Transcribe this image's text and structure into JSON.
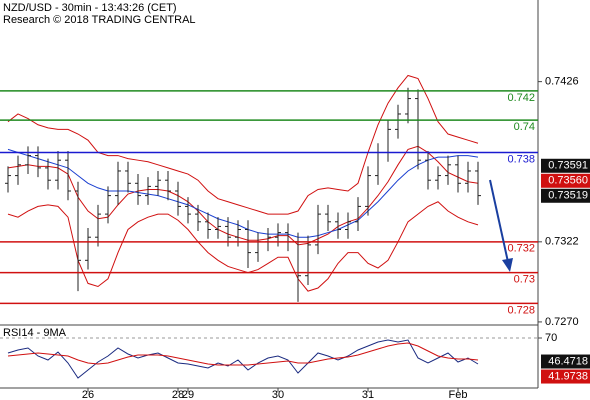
{
  "chart_data": [
    {
      "type": "ohlc",
      "title": "NZD/USD - 30min - 13:43:26 (CET)",
      "subtitle": "Research © 2018 TRADING CENTRAL",
      "categories": [
        null,
        null,
        null,
        null,
        null,
        null,
        null,
        null,
        "26",
        null,
        null,
        null,
        null,
        null,
        null,
        null,
        null,
        "28",
        "29",
        null,
        null,
        null,
        null,
        null,
        null,
        null,
        null,
        "30",
        null,
        null,
        null,
        null,
        null,
        null,
        null,
        null,
        "31",
        null,
        null,
        null,
        null,
        null,
        null,
        null,
        null,
        "Feb",
        null,
        null
      ],
      "open": [
        0.736,
        0.7365,
        0.7372,
        0.7378,
        0.737,
        0.7362,
        0.7375,
        0.7355,
        0.731,
        0.7325,
        0.734,
        0.7352,
        0.7368,
        0.736,
        0.7352,
        0.7358,
        0.7362,
        0.7355,
        0.7345,
        0.734,
        0.7335,
        0.733,
        0.7332,
        0.7325,
        0.733,
        0.7315,
        0.7322,
        0.7325,
        0.7328,
        0.7322,
        0.73,
        0.732,
        0.734,
        0.7335,
        0.733,
        0.7335,
        0.7345,
        0.7365,
        0.738,
        0.7395,
        0.7405,
        0.7415,
        0.7375,
        0.7362,
        0.7365,
        0.7372,
        0.736,
        0.7368
      ],
      "high": [
        0.7371,
        0.7378,
        0.7384,
        0.7384,
        0.7376,
        0.7381,
        0.7381,
        0.7361,
        0.7331,
        0.7346,
        0.7358,
        0.7374,
        0.7374,
        0.7366,
        0.7364,
        0.7368,
        0.7368,
        0.7361,
        0.7351,
        0.7346,
        0.7341,
        0.7338,
        0.7338,
        0.7336,
        0.7336,
        0.7328,
        0.7331,
        0.7334,
        0.7334,
        0.7328,
        0.7326,
        0.7346,
        0.7346,
        0.7341,
        0.7341,
        0.7351,
        0.7371,
        0.7386,
        0.7401,
        0.7411,
        0.7422,
        0.7421,
        0.7381,
        0.7371,
        0.7378,
        0.7378,
        0.7374,
        0.7374
      ],
      "low": [
        0.7354,
        0.7359,
        0.7366,
        0.7364,
        0.7356,
        0.7356,
        0.7349,
        0.729,
        0.7304,
        0.7319,
        0.7334,
        0.7346,
        0.7354,
        0.7346,
        0.7346,
        0.7352,
        0.7349,
        0.7339,
        0.7334,
        0.7329,
        0.7324,
        0.7324,
        0.7319,
        0.7319,
        0.7305,
        0.7309,
        0.7316,
        0.7319,
        0.7316,
        0.7283,
        0.7294,
        0.7314,
        0.7329,
        0.7324,
        0.7324,
        0.7329,
        0.7339,
        0.7359,
        0.7374,
        0.7389,
        0.7399,
        0.7369,
        0.7356,
        0.7356,
        0.7359,
        0.7354,
        0.7354,
        0.7346
      ],
      "close": [
        0.7365,
        0.7372,
        0.7378,
        0.737,
        0.7362,
        0.7375,
        0.7355,
        0.731,
        0.7325,
        0.734,
        0.7352,
        0.7368,
        0.736,
        0.7352,
        0.7358,
        0.7362,
        0.7355,
        0.7345,
        0.734,
        0.7335,
        0.733,
        0.7332,
        0.7325,
        0.733,
        0.7315,
        0.7322,
        0.7325,
        0.7328,
        0.7322,
        0.73,
        0.732,
        0.734,
        0.7335,
        0.733,
        0.7335,
        0.7345,
        0.7365,
        0.738,
        0.7395,
        0.7405,
        0.7415,
        0.7375,
        0.7362,
        0.7365,
        0.7372,
        0.736,
        0.7368,
        0.7352
      ],
      "bar_color": "#222222",
      "series": [
        {
          "color": "#d01010",
          "values": [
            0.74,
            0.7405,
            0.7402,
            0.7398,
            0.7396,
            0.7395,
            0.7395,
            0.7392,
            0.7388,
            0.738,
            0.7378,
            0.7378,
            0.7376,
            0.7375,
            0.7374,
            0.7372,
            0.737,
            0.7368,
            0.7366,
            0.7362,
            0.7355,
            0.735,
            0.7348,
            0.7346,
            0.7344,
            0.7342,
            0.734,
            0.734,
            0.734,
            0.7342,
            0.7352,
            0.7356,
            0.7357,
            0.7356,
            0.7355,
            0.736,
            0.738,
            0.7398,
            0.7412,
            0.7422,
            0.743,
            0.7428,
            0.7415,
            0.74,
            0.7392,
            0.739,
            0.7388,
            0.7386
          ]
        },
        {
          "color": "#d01010",
          "values": [
            0.737,
            0.7371,
            0.7372,
            0.7371,
            0.7371,
            0.737,
            0.7366,
            0.7351,
            0.7342,
            0.7337,
            0.7338,
            0.7346,
            0.7353,
            0.7355,
            0.7356,
            0.7356,
            0.7355,
            0.7352,
            0.7348,
            0.7342,
            0.7335,
            0.733,
            0.7327,
            0.7325,
            0.7323,
            0.7323,
            0.7324,
            0.7326,
            0.7326,
            0.732,
            0.7321,
            0.7324,
            0.7327,
            0.7332,
            0.7335,
            0.7337,
            0.7344,
            0.7352,
            0.7361,
            0.7372,
            0.7382,
            0.7384,
            0.738,
            0.7374,
            0.7367,
            0.7364,
            0.7361,
            0.736
          ]
        },
        {
          "color": "#d01010",
          "values": [
            0.734,
            0.7338,
            0.7342,
            0.7345,
            0.7346,
            0.7345,
            0.7338,
            0.731,
            0.7295,
            0.7293,
            0.7298,
            0.7315,
            0.733,
            0.7335,
            0.7338,
            0.734,
            0.734,
            0.7336,
            0.733,
            0.7322,
            0.7315,
            0.731,
            0.7306,
            0.7304,
            0.7302,
            0.7304,
            0.7308,
            0.7312,
            0.7312,
            0.7298,
            0.729,
            0.7292,
            0.7298,
            0.7308,
            0.7315,
            0.7315,
            0.7308,
            0.7305,
            0.731,
            0.7322,
            0.7335,
            0.734,
            0.7345,
            0.7348,
            0.7342,
            0.7338,
            0.7335,
            0.7333
          ]
        },
        {
          "color": "#1a3fd0",
          "values": [
            0.7382,
            0.738,
            0.7378,
            0.7376,
            0.7374,
            0.7372,
            0.737,
            0.7365,
            0.736,
            0.7357,
            0.7355,
            0.7355,
            0.7355,
            0.7354,
            0.7353,
            0.7352,
            0.735,
            0.7348,
            0.7346,
            0.7343,
            0.734,
            0.7337,
            0.7335,
            0.7333,
            0.733,
            0.7328,
            0.7327,
            0.7327,
            0.7327,
            0.7325,
            0.7325,
            0.7326,
            0.7328,
            0.733,
            0.7333,
            0.7336,
            0.7342,
            0.7348,
            0.7355,
            0.7362,
            0.7368,
            0.7372,
            0.7375,
            0.7377,
            0.7377,
            0.7378,
            0.7378,
            0.7377
          ]
        }
      ],
      "levels": [
        {
          "value": 0.742,
          "label": "0.742",
          "color": "#1f8a1f"
        },
        {
          "value": 0.7401,
          "label": "0.74",
          "color": "#1f8a1f"
        },
        {
          "value": 0.738,
          "label": "0.738",
          "color": "#1a1ad0"
        },
        {
          "value": 0.7322,
          "label": "0.732",
          "color": "#d01010"
        },
        {
          "value": 0.7302,
          "label": "0.73",
          "color": "#d01010"
        },
        {
          "value": 0.7282,
          "label": "0.728",
          "color": "#d01010"
        }
      ],
      "price_tags": [
        {
          "value": 0.73591,
          "label": "0.73591",
          "color": "#111111"
        },
        {
          "value": 0.7356,
          "label": "0.73560",
          "color": "#d01010"
        },
        {
          "value": 0.73519,
          "label": "0.73519",
          "color": "#111111"
        }
      ],
      "ylim": [
        0.7268,
        0.7479
      ],
      "yticks": [
        0.7426,
        0.7322,
        {
          "value": 0.727,
          "label": "0.7270"
        }
      ]
    },
    {
      "type": "line",
      "title": "RSI14 - 9MA",
      "series": [
        {
          "color": "#1a2a80",
          "values": [
            55,
            58,
            60,
            52,
            48,
            56,
            45,
            30,
            38,
            46,
            52,
            60,
            54,
            50,
            53,
            55,
            50,
            45,
            44,
            42,
            40,
            45,
            42,
            48,
            38,
            45,
            50,
            52,
            48,
            35,
            45,
            55,
            52,
            48,
            52,
            58,
            62,
            66,
            68,
            66,
            68,
            50,
            45,
            50,
            55,
            46,
            50,
            44
          ]
        },
        {
          "color": "#d01010",
          "values": [
            52,
            53,
            54,
            55,
            54,
            53,
            52,
            48,
            45,
            44,
            45,
            48,
            51,
            53,
            53,
            53,
            52,
            50,
            48,
            46,
            44,
            43,
            43,
            43,
            43,
            44,
            45,
            46,
            47,
            45,
            45,
            47,
            49,
            50,
            51,
            53,
            56,
            59,
            62,
            64,
            65,
            62,
            57,
            52,
            50,
            49,
            49,
            48
          ]
        }
      ],
      "price_tags": [
        {
          "value": 46.4718,
          "label": "46.4718",
          "color": "#111111"
        },
        {
          "value": 41.9738,
          "label": "41.9738",
          "color": "#d01010"
        }
      ],
      "ylim": [
        20,
        82
      ],
      "yticks": [
        70
      ]
    }
  ]
}
